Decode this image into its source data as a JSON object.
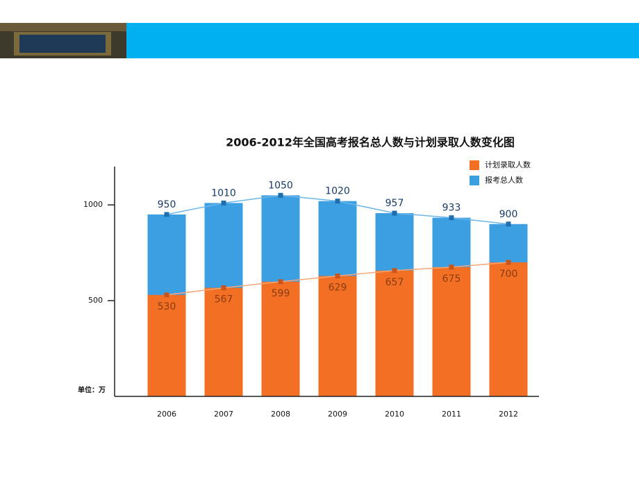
{
  "chart_data": {
    "type": "bar",
    "title": "2006-2012年全国高考报名总人数与计划录取人数变化图",
    "unit_label": "单位：万",
    "categories": [
      "2006",
      "2007",
      "2008",
      "2009",
      "2010",
      "2011",
      "2012"
    ],
    "series": [
      {
        "name": "计划录取人数",
        "color": "#f26f24",
        "values": [
          530,
          567,
          599,
          629,
          657,
          675,
          700
        ]
      },
      {
        "name": "报考总人数",
        "color": "#3c9fe2",
        "values": [
          950,
          1010,
          1050,
          1020,
          957,
          933,
          900
        ]
      }
    ],
    "ylim": [
      0,
      1200
    ],
    "yticks": [
      500,
      1000
    ],
    "legend": "upper right"
  }
}
